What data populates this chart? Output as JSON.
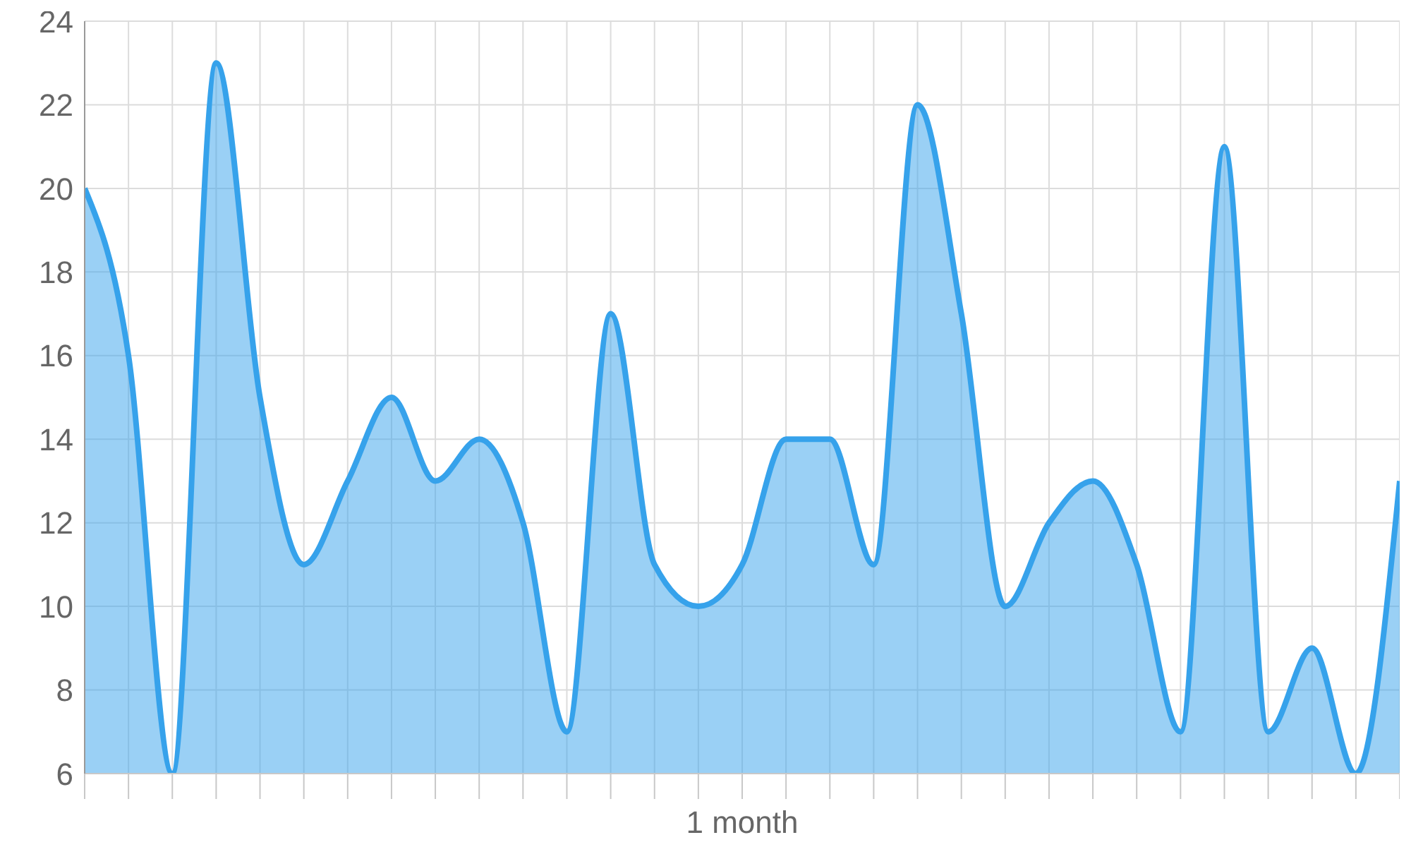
{
  "chart_data": {
    "type": "area",
    "xlabel": "1 month",
    "categories": [
      null,
      null,
      null,
      null,
      null,
      null,
      null,
      null,
      null,
      null,
      null,
      null,
      null,
      null,
      null,
      null,
      null,
      null,
      null,
      null,
      null,
      null,
      null,
      null,
      null,
      null,
      null,
      null,
      null,
      null,
      null
    ],
    "series": [
      {
        "color": "#36a2eb",
        "values": [
          20,
          16,
          6,
          23,
          15,
          11,
          13,
          15,
          13,
          14,
          12,
          7,
          17,
          11,
          10,
          11,
          14,
          14,
          11,
          22,
          17,
          10,
          12,
          13,
          11,
          7,
          21,
          7,
          9,
          6,
          13
        ]
      }
    ],
    "ylim": [
      6,
      24
    ],
    "yticks": [
      6,
      8,
      10,
      12,
      14,
      16,
      18,
      20,
      22,
      24
    ],
    "grid": true,
    "legend": false
  }
}
